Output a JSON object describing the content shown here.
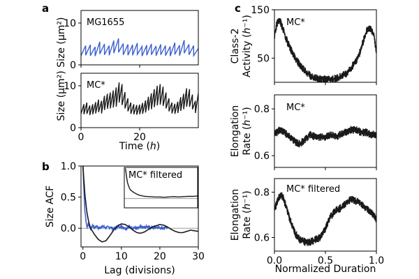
{
  "colors": {
    "blue": "#3c5fd0",
    "black": "#1a1a1a",
    "zero_line": "#9a9a9a"
  },
  "panel_labels": {
    "a": "a",
    "b": "b",
    "c": "c"
  },
  "chart_data": [
    {
      "id": "a_top",
      "type": "line",
      "panel": "a",
      "annotation": "MG1655",
      "ylabel": "Size (μm²)",
      "xlabel": "",
      "xlim": [
        0,
        40
      ],
      "ylim": [
        0,
        13
      ],
      "xticks": [
        0,
        20
      ],
      "xticklabels": [
        "",
        ""
      ],
      "yticks": [
        0,
        10
      ],
      "yticklabels": [
        "0",
        "10"
      ],
      "series": [
        {
          "name": "MG1655",
          "color": "#3c5fd0",
          "kind": "sawtooth",
          "x": [
            0,
            1.6,
            1.6,
            3.2,
            3.2,
            4.8,
            4.8,
            6.4,
            6.4,
            8,
            8,
            9.6,
            9.6,
            11.2,
            11.2,
            12.8,
            12.8,
            14.4,
            14.4,
            16,
            16,
            17.6,
            17.6,
            19.2,
            19.2,
            20.8,
            20.8,
            22.4,
            22.4,
            24,
            24,
            25.6,
            25.6,
            27.2,
            27.2,
            28.8,
            28.8,
            30.4,
            30.4,
            32,
            32,
            33.6,
            33.6,
            35.2,
            35.2,
            36.8,
            36.8,
            38.4,
            38.4,
            40
          ],
          "y": [
            2.2,
            4.6,
            2.3,
            4.8,
            2.2,
            4.3,
            2.1,
            5.5,
            2.6,
            5.0,
            2.4,
            4.6,
            2.3,
            5.8,
            2.8,
            6.3,
            3.0,
            5.1,
            2.4,
            4.9,
            2.3,
            4.8,
            2.3,
            5.2,
            2.5,
            4.4,
            2.1,
            4.7,
            2.3,
            5.0,
            2.4,
            4.5,
            2.2,
            4.9,
            2.4,
            4.6,
            2.2,
            4.4,
            2.1,
            5.3,
            2.5,
            4.7,
            2.2,
            5.9,
            2.8,
            4.9,
            2.4,
            4.6,
            2.2,
            3.9
          ]
        }
      ]
    },
    {
      "id": "a_bottom",
      "type": "line",
      "panel": "a",
      "annotation": "MC*",
      "ylabel": "Size (μm²)",
      "xlabel": "Time (h)",
      "xlim": [
        0,
        40
      ],
      "ylim": [
        0,
        13
      ],
      "xticks": [
        0,
        20
      ],
      "xticklabels": [
        "0",
        "20"
      ],
      "yticks": [
        0,
        10
      ],
      "yticklabels": [
        "0",
        "10"
      ],
      "series": [
        {
          "name": "MC*",
          "color": "#1a1a1a",
          "kind": "sawtooth",
          "x": [
            0,
            1,
            1,
            2,
            2,
            3,
            3,
            4,
            4,
            5,
            5,
            6,
            6,
            7,
            7,
            8,
            8,
            9,
            9,
            10,
            10,
            11,
            11,
            12,
            12,
            13,
            13,
            14,
            14,
            15,
            15,
            16,
            16,
            17,
            17,
            18,
            18,
            19,
            19,
            20,
            20,
            21,
            21,
            22,
            22,
            23,
            23,
            24,
            24,
            25,
            25,
            26,
            26,
            27,
            27,
            28,
            28,
            29,
            29,
            30,
            30,
            31,
            31,
            32,
            32,
            33,
            33,
            34,
            34,
            35,
            35,
            36,
            36,
            37,
            37,
            38,
            38,
            39,
            39,
            40
          ],
          "y": [
            3.3,
            5.6,
            3.2,
            6.0,
            3.3,
            5.3,
            3.0,
            5.6,
            3.2,
            6.1,
            3.4,
            6.7,
            3.7,
            6.4,
            3.4,
            7.6,
            4.2,
            8.1,
            4.5,
            8.4,
            4.6,
            8.9,
            4.8,
            9.6,
            5.0,
            10.8,
            6.0,
            10.4,
            5.4,
            8.5,
            4.6,
            7.0,
            3.9,
            6.0,
            3.3,
            5.6,
            3.2,
            5.4,
            3.1,
            5.5,
            3.2,
            5.9,
            3.3,
            6.5,
            3.6,
            7.4,
            4.1,
            8.2,
            4.4,
            9.2,
            4.9,
            10.0,
            5.3,
            10.4,
            5.5,
            9.8,
            5.2,
            8.4,
            4.6,
            7.0,
            3.9,
            6.0,
            3.4,
            5.7,
            3.3,
            6.2,
            3.5,
            7.3,
            4.0,
            8.1,
            4.4,
            9.4,
            5.0,
            9.2,
            5.0,
            7.9,
            4.4,
            6.4,
            3.5,
            8.2
          ]
        }
      ]
    },
    {
      "id": "b_main",
      "type": "line",
      "panel": "b",
      "ylabel": "Size ACF",
      "xlabel": "Lag (divisions)",
      "xlim": [
        -0.5,
        30
      ],
      "ylim": [
        -0.3,
        1.0
      ],
      "xticks": [
        0,
        10,
        20,
        30
      ],
      "xticklabels": [
        "0",
        "10",
        "20",
        "30"
      ],
      "yticks": [
        0.0,
        0.5,
        1.0
      ],
      "yticklabels": [
        "0.0",
        "0.5",
        "1.0"
      ],
      "zero_line": true,
      "series": [
        {
          "name": "MG1655",
          "color": "#3c5fd0",
          "kind": "noisy",
          "x": [
            0,
            0.5,
            1,
            1.5,
            2,
            2.5,
            3,
            3.5,
            4,
            5,
            6,
            7,
            8,
            9,
            10,
            11,
            12,
            13,
            14,
            15,
            16,
            17,
            18,
            19,
            20,
            21,
            22
          ],
          "y": [
            1.0,
            0.28,
            0.02,
            0.08,
            -0.02,
            0.05,
            0.01,
            0.04,
            0.0,
            0.03,
            0.01,
            0.02,
            -0.01,
            0.02,
            0.03,
            0.0,
            0.02,
            0.01,
            -0.01,
            0.02,
            0.01,
            0.03,
            0.0,
            0.02,
            0.01,
            0.0,
            0.02
          ]
        },
        {
          "name": "MC*",
          "color": "#1a1a1a",
          "kind": "smooth",
          "x": [
            0,
            0.5,
            1,
            1.5,
            2,
            3,
            4,
            5,
            6,
            7,
            8,
            9,
            10,
            11,
            12,
            13,
            14,
            15,
            16,
            17,
            18,
            19,
            20,
            21,
            22,
            23,
            24,
            25,
            26,
            27,
            28,
            29,
            30
          ],
          "y": [
            1.0,
            0.55,
            0.27,
            0.1,
            0.0,
            -0.1,
            -0.18,
            -0.22,
            -0.2,
            -0.12,
            -0.03,
            0.04,
            0.07,
            0.06,
            0.02,
            -0.03,
            -0.07,
            -0.08,
            -0.06,
            -0.02,
            0.02,
            0.04,
            0.06,
            0.05,
            0.02,
            -0.02,
            -0.05,
            -0.07,
            -0.07,
            -0.05,
            -0.03,
            -0.04,
            -0.05
          ]
        }
      ]
    },
    {
      "id": "b_inset",
      "type": "line",
      "panel": "b",
      "annotation": "MC* filtered",
      "xlim": [
        -0.5,
        30
      ],
      "ylim": [
        -0.3,
        1.0
      ],
      "zero_line": true,
      "series": [
        {
          "name": "MC* filtered",
          "color": "#1a1a1a",
          "kind": "smooth",
          "x": [
            0,
            0.4,
            0.8,
            1.2,
            1.6,
            2,
            3,
            4,
            5,
            6,
            8,
            10,
            12,
            14,
            16,
            18,
            20,
            22,
            24,
            26,
            28,
            30
          ],
          "y": [
            0.97,
            0.72,
            0.52,
            0.42,
            0.34,
            0.28,
            0.22,
            0.17,
            0.13,
            0.1,
            0.07,
            0.06,
            0.05,
            0.05,
            0.04,
            0.05,
            0.06,
            0.05,
            0.06,
            0.07,
            0.07,
            0.08
          ]
        }
      ]
    },
    {
      "id": "c_top",
      "type": "line",
      "panel": "c",
      "annotation": "MC*",
      "ylabel": "Class-2 Activity (h⁻¹)",
      "xlabel": "",
      "xlim": [
        0,
        1
      ],
      "ylim": [
        0,
        150
      ],
      "xticks": [
        0,
        0.5,
        1.0
      ],
      "xticklabels": [
        "",
        "",
        ""
      ],
      "yticks": [
        50,
        150
      ],
      "yticklabels": [
        "50",
        "150"
      ],
      "series": [
        {
          "name": "MC*",
          "color": "#1a1a1a",
          "kind": "band",
          "x": [
            0,
            0.02,
            0.04,
            0.06,
            0.08,
            0.1,
            0.12,
            0.15,
            0.2,
            0.25,
            0.3,
            0.35,
            0.4,
            0.45,
            0.5,
            0.55,
            0.6,
            0.65,
            0.7,
            0.75,
            0.8,
            0.84,
            0.88,
            0.91,
            0.94,
            0.96,
            0.98,
            1.0
          ],
          "y": [
            95,
            118,
            128,
            124,
            112,
            99,
            88,
            72,
            52,
            36,
            24,
            14,
            9,
            7,
            6,
            6,
            8,
            12,
            18,
            28,
            44,
            63,
            92,
            108,
            111,
            106,
            95,
            58
          ]
        }
      ]
    },
    {
      "id": "c_mid",
      "type": "line",
      "panel": "c",
      "annotation": "MC*",
      "ylabel": "Elongation Rate (h⁻¹)",
      "xlabel": "",
      "xlim": [
        0,
        1
      ],
      "ylim": [
        0.55,
        0.86
      ],
      "xticks": [
        0,
        0.5,
        1.0
      ],
      "xticklabels": [
        "",
        "",
        ""
      ],
      "yticks": [
        0.6,
        0.8
      ],
      "yticklabels": [
        "0.6",
        "0.8"
      ],
      "series": [
        {
          "name": "MC*",
          "color": "#1a1a1a",
          "kind": "band",
          "x": [
            0,
            0.05,
            0.1,
            0.15,
            0.2,
            0.25,
            0.3,
            0.35,
            0.4,
            0.45,
            0.5,
            0.55,
            0.6,
            0.65,
            0.7,
            0.75,
            0.8,
            0.85,
            0.9,
            0.95,
            1.0
          ],
          "y": [
            0.69,
            0.71,
            0.7,
            0.68,
            0.66,
            0.65,
            0.67,
            0.69,
            0.68,
            0.68,
            0.68,
            0.69,
            0.68,
            0.69,
            0.7,
            0.71,
            0.71,
            0.7,
            0.7,
            0.69,
            0.69
          ]
        }
      ]
    },
    {
      "id": "c_bottom",
      "type": "line",
      "panel": "c",
      "annotation": "MC* filtered",
      "ylabel": "Elongation Rate (h⁻¹)",
      "xlabel": "Normalized Duration",
      "xlim": [
        0,
        1
      ],
      "ylim": [
        0.54,
        0.86
      ],
      "xticks": [
        0,
        0.5,
        1.0
      ],
      "xticklabels": [
        "0.0",
        "0.5",
        "1.0"
      ],
      "yticks": [
        0.6,
        0.8
      ],
      "yticklabels": [
        "0.6",
        "0.8"
      ],
      "series": [
        {
          "name": "MC* filtered",
          "color": "#1a1a1a",
          "kind": "band",
          "x": [
            0,
            0.03,
            0.06,
            0.09,
            0.12,
            0.15,
            0.2,
            0.25,
            0.3,
            0.35,
            0.4,
            0.45,
            0.5,
            0.55,
            0.6,
            0.65,
            0.7,
            0.75,
            0.8,
            0.85,
            0.9,
            0.95,
            1.0
          ],
          "y": [
            0.72,
            0.76,
            0.79,
            0.77,
            0.73,
            0.68,
            0.62,
            0.59,
            0.58,
            0.58,
            0.59,
            0.6,
            0.64,
            0.69,
            0.72,
            0.73,
            0.75,
            0.77,
            0.76,
            0.75,
            0.73,
            0.71,
            0.68
          ]
        }
      ]
    }
  ]
}
